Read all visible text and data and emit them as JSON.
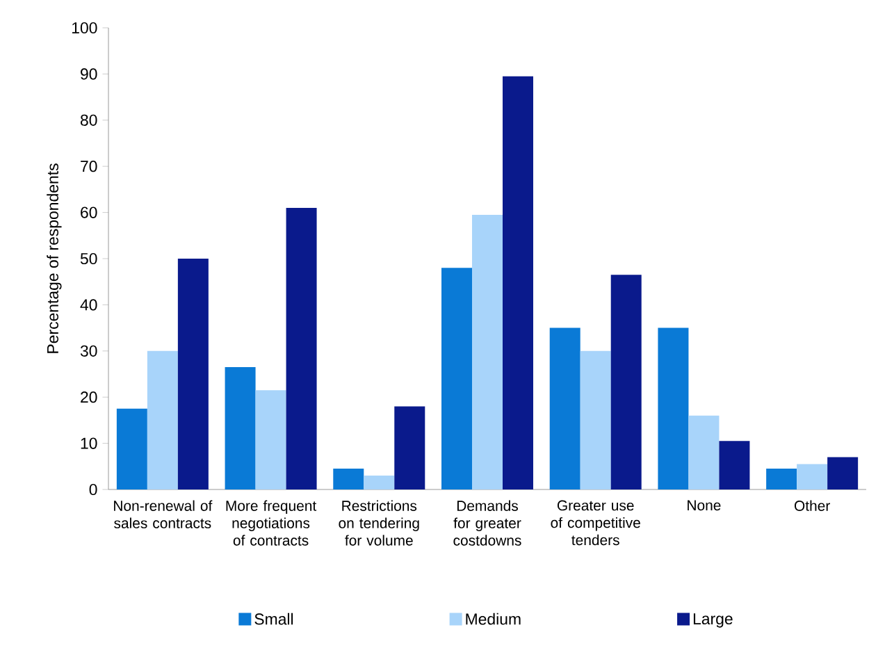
{
  "chart_data": {
    "type": "bar",
    "ylabel": "Percentage of respondents",
    "categories": [
      "Non-renewal of sales contracts",
      "More frequent negotiations of contracts",
      "Restrictions on tendering for volume",
      "Demands for greater costdowns",
      "Greater use of competitive tenders",
      "None",
      "Other"
    ],
    "series": [
      {
        "name": "Small",
        "color": "#0a7ad6",
        "values": [
          17.5,
          26.5,
          4.5,
          48,
          35,
          35,
          4.5
        ]
      },
      {
        "name": "Medium",
        "color": "#a8d4fa",
        "values": [
          30,
          21.5,
          3,
          59.5,
          30,
          16,
          5.5
        ]
      },
      {
        "name": "Large",
        "color": "#0a1a8c",
        "values": [
          50,
          61,
          18,
          89.5,
          46.5,
          10.5,
          7
        ]
      }
    ],
    "ylim": [
      0,
      100
    ],
    "yticks": [
      0,
      10,
      20,
      30,
      40,
      50,
      60,
      70,
      80,
      90,
      100
    ],
    "grid": false,
    "legend": "bottom"
  }
}
